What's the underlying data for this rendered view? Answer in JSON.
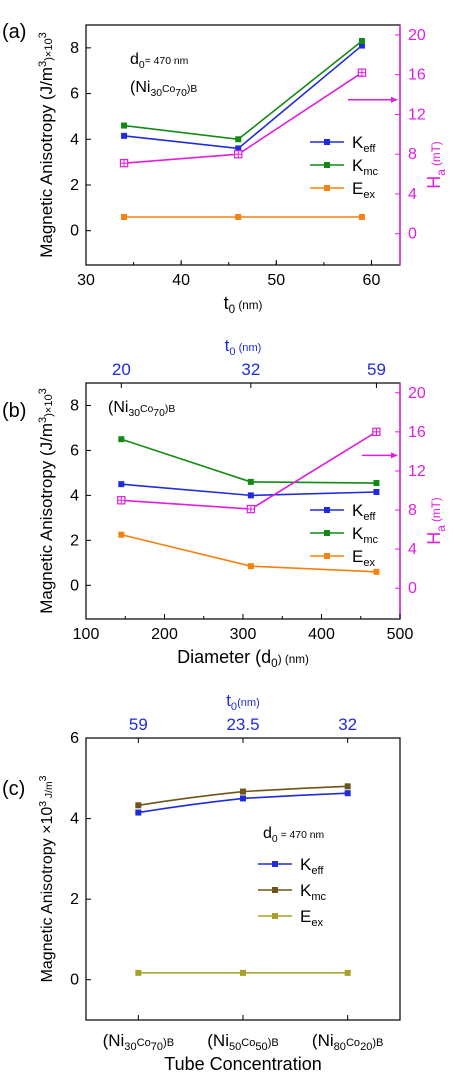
{
  "colors": {
    "blue": "#1f2bdc",
    "green": "#128a12",
    "orange": "#f5820f",
    "magenta": "#e01ee0",
    "brown": "#6e5418",
    "olive": "#a8a028",
    "axis": "#000000"
  },
  "chart_data": [
    {
      "type": "line",
      "panel_label": "(a)",
      "xlabel": "t0 (nm)",
      "ylabel": "Magnetic Anisotropy (J/m3)×103",
      "y2label": "Ha (mT)",
      "xlim": [
        30,
        63
      ],
      "ylim": [
        -1.5,
        9
      ],
      "y2lim": [
        -3.15,
        21
      ],
      "x_ticks": [
        "30",
        "40",
        "50",
        "60"
      ],
      "y_ticks": [
        "0",
        "2",
        "4",
        "6",
        "8"
      ],
      "y2_ticks": [
        "0",
        "4",
        "8",
        "12",
        "16",
        "20"
      ],
      "x": [
        34,
        46,
        59
      ],
      "annotations": [
        "d0= 470 nm",
        "(Ni30Co70)B"
      ],
      "series": [
        {
          "name": "Keff",
          "values": [
            4.15,
            3.6,
            8.1
          ],
          "color_key": "blue",
          "marker": "filled-square",
          "axis": "left"
        },
        {
          "name": "Kmc",
          "values": [
            4.6,
            4.0,
            8.3
          ],
          "color_key": "green",
          "marker": "filled-square",
          "axis": "left"
        },
        {
          "name": "Eex",
          "values": [
            0.6,
            0.6,
            0.6
          ],
          "color_key": "orange",
          "marker": "filled-square",
          "axis": "left"
        },
        {
          "name": "Ha",
          "values": [
            7.1,
            8.0,
            16.2
          ],
          "color_key": "magenta",
          "marker": "open-square-plus",
          "axis": "right"
        }
      ],
      "legend_position": "right-middle"
    },
    {
      "type": "line",
      "panel_label": "(b)",
      "xlabel": "Diameter (d0) (nm)",
      "x2label": "t0 (nm)",
      "ylabel": "Magnetic Anisotropy (J/m3)×103",
      "y2label": "Ha (mT)",
      "xlim": [
        100,
        500
      ],
      "ylim": [
        -1.5,
        9
      ],
      "y2lim": [
        -3.15,
        21
      ],
      "x_ticks": [
        "100",
        "200",
        "300",
        "400",
        "500"
      ],
      "x2_ticks": [
        "20",
        "32",
        "59"
      ],
      "y_ticks": [
        "0",
        "2",
        "4",
        "6",
        "8"
      ],
      "y2_ticks": [
        "0",
        "4",
        "8",
        "12",
        "16",
        "20"
      ],
      "x": [
        145,
        310,
        470
      ],
      "annotations": [
        "(Ni30Co70)B"
      ],
      "series": [
        {
          "name": "Keff",
          "values": [
            4.5,
            4.0,
            4.15
          ],
          "color_key": "blue",
          "marker": "filled-square",
          "axis": "left"
        },
        {
          "name": "Kmc",
          "values": [
            6.5,
            4.6,
            4.55
          ],
          "color_key": "green",
          "marker": "filled-square",
          "axis": "left"
        },
        {
          "name": "Eex",
          "values": [
            2.25,
            0.85,
            0.6
          ],
          "color_key": "orange",
          "marker": "filled-square",
          "axis": "left"
        },
        {
          "name": "Ha",
          "values": [
            9.0,
            8.1,
            16.0
          ],
          "color_key": "magenta",
          "marker": "open-square-plus",
          "axis": "right"
        }
      ],
      "legend_position": "right-middle"
    },
    {
      "type": "line",
      "panel_label": "(c)",
      "xlabel": "Tube Concentration",
      "x2label": "t0(nm)",
      "ylabel": "Magnetic Anisotropy ×103 J/m3",
      "ylim": [
        -1,
        6
      ],
      "categories": [
        "(Ni30Co70)B",
        "(Ni50Co50)B",
        "(Ni80Co20)B"
      ],
      "x2_ticks": [
        "59",
        "23.5",
        "32"
      ],
      "y_ticks": [
        "0",
        "2",
        "4",
        "6"
      ],
      "annotations": [
        "d0 = 470 nm"
      ],
      "series": [
        {
          "name": "Keff",
          "values": [
            4.15,
            4.5,
            4.63
          ],
          "color_key": "blue",
          "marker": "filled-square"
        },
        {
          "name": "Kmc",
          "values": [
            4.33,
            4.67,
            4.8
          ],
          "color_key": "brown",
          "marker": "filled-square"
        },
        {
          "name": "Eex",
          "values": [
            0.17,
            0.17,
            0.17
          ],
          "color_key": "olive",
          "marker": "filled-square"
        }
      ],
      "legend_position": "right-middle"
    }
  ]
}
